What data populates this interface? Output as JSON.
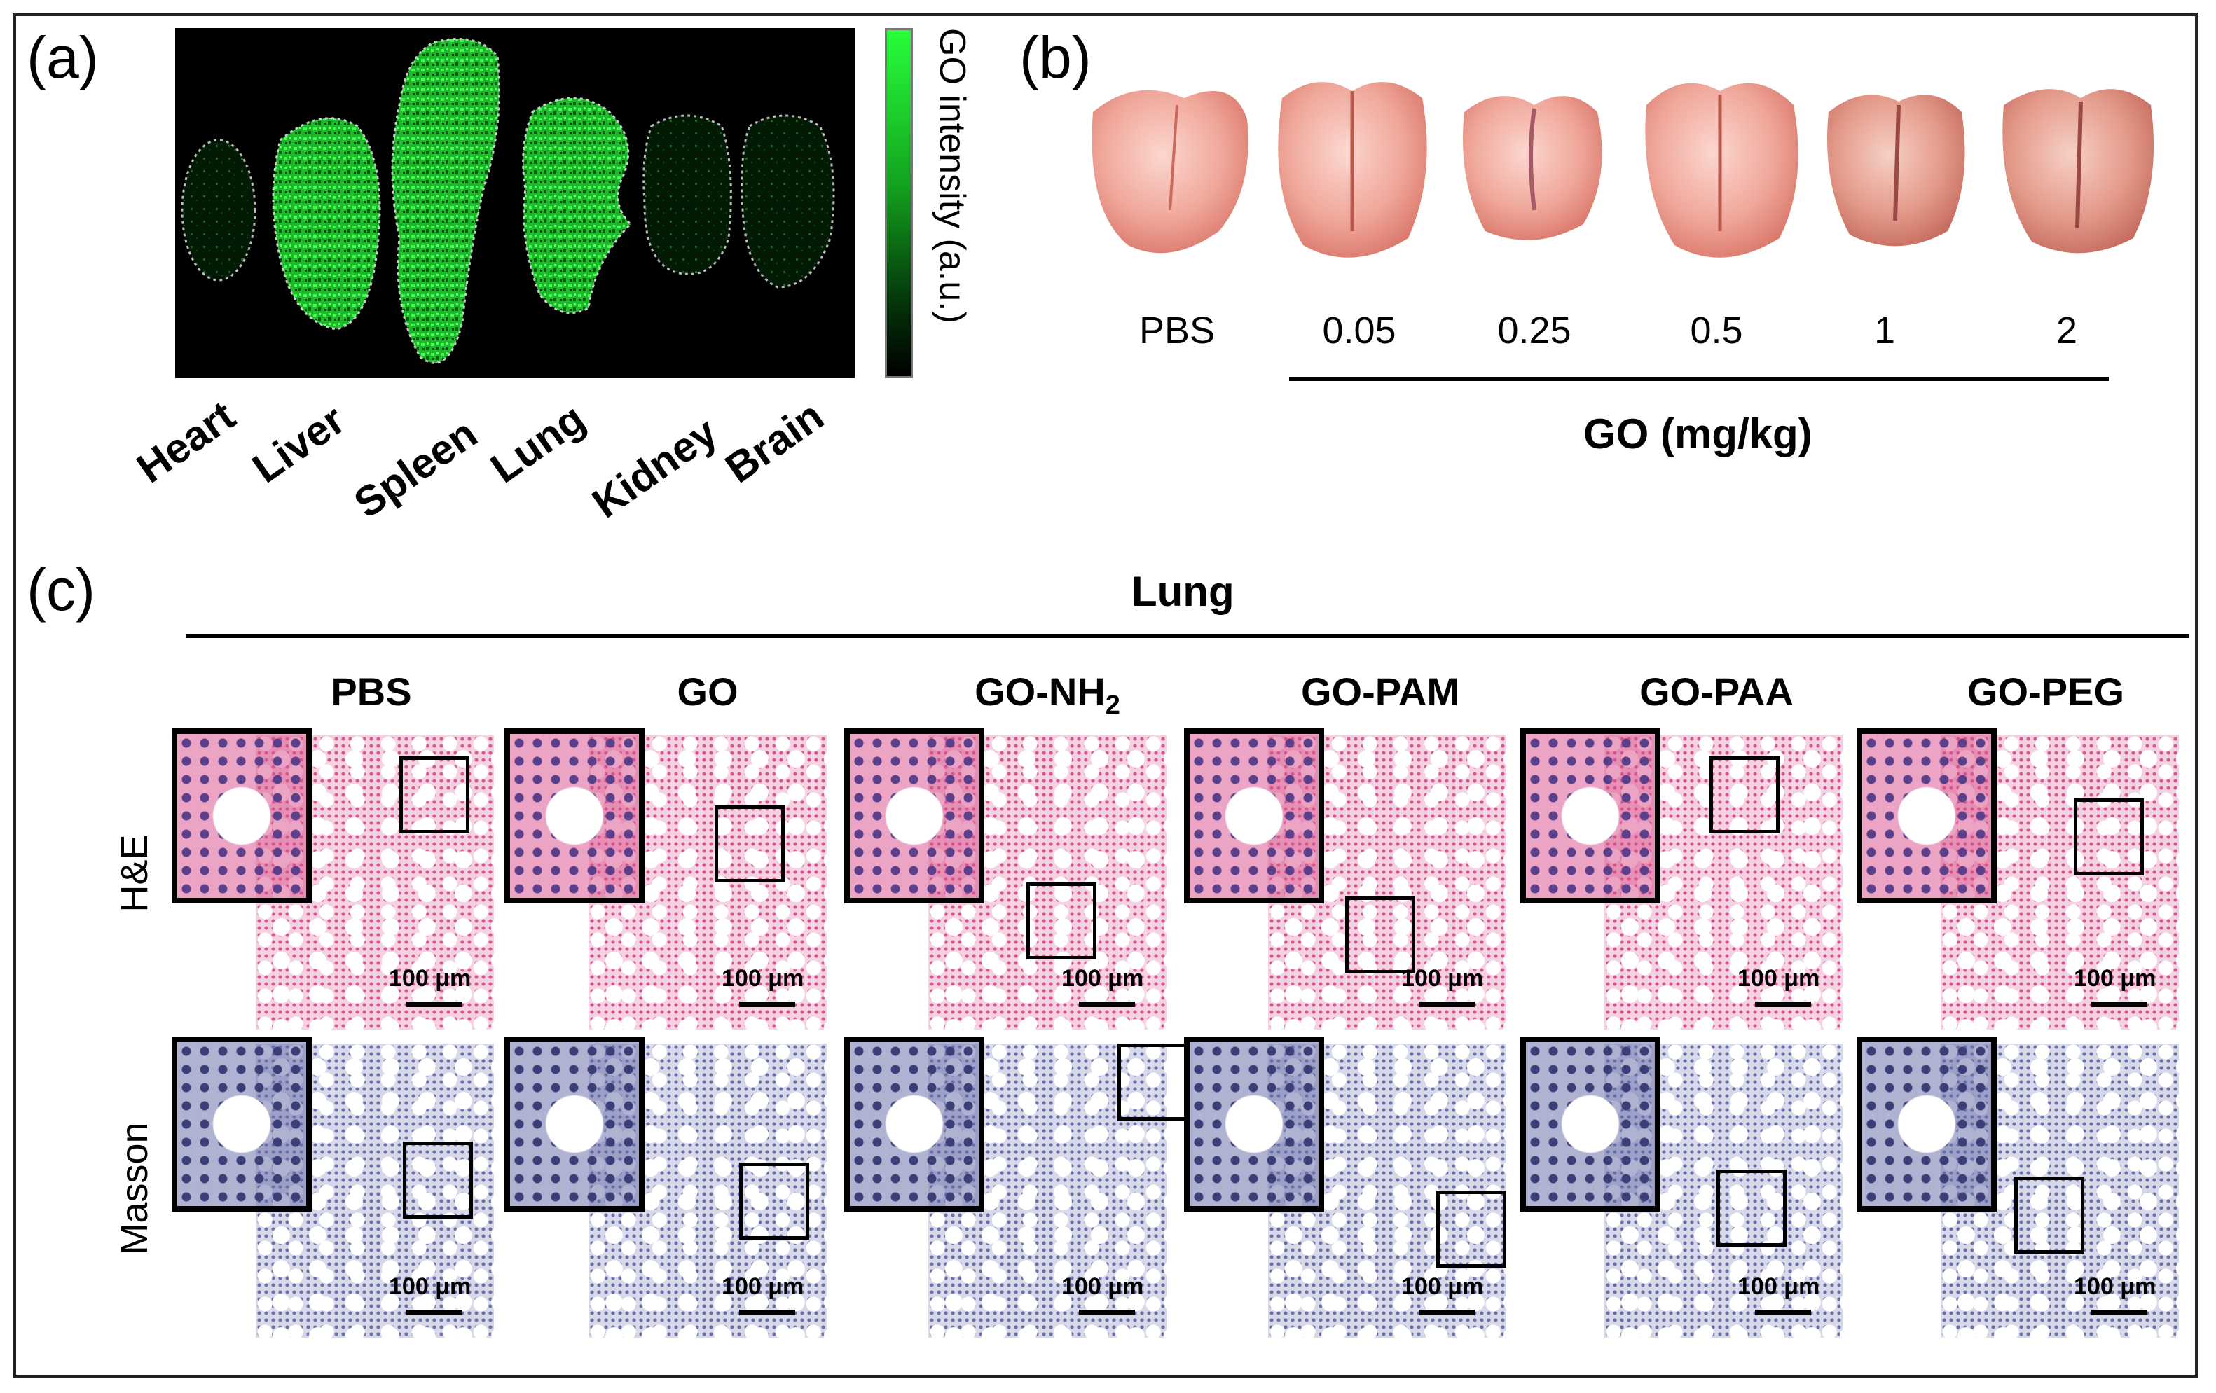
{
  "panels": {
    "a": {
      "letter": "(a)",
      "colorbar_label": "GO intensity (a.u.)",
      "organs": [
        "Heart",
        "Liver",
        "Spleen",
        "Lung",
        "Kidney",
        "Brain"
      ],
      "colors": {
        "background": "#000000",
        "signal": "#2cff3c"
      }
    },
    "b": {
      "letter": "(b)",
      "doses": [
        "PBS",
        "0.05",
        "0.25",
        "0.5",
        "1",
        "2"
      ],
      "axis_title": "GO (mg/kg)"
    },
    "c": {
      "letter": "(c)",
      "title": "Lung",
      "groups": [
        "PBS",
        "GO",
        "GO-NH",
        "GO-PAM",
        "GO-PAA",
        "GO-PEG"
      ],
      "nh2_subscript": "2",
      "rows": [
        "H&E",
        "Masson"
      ],
      "scale_label": "100 μm",
      "colors": {
        "he_stain": "#d9558f",
        "masson_stain": "#6a6fa8",
        "blood": "#d2243a"
      }
    }
  }
}
